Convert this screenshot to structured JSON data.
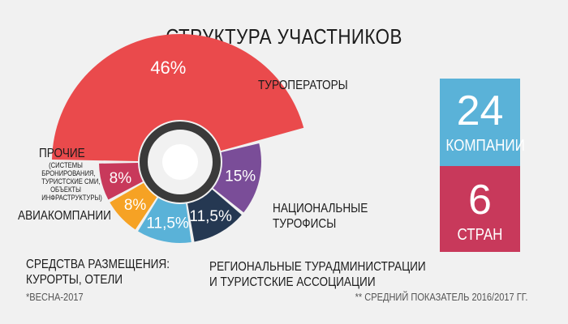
{
  "title": "СТРУКТУРА УЧАСТНИКОВ",
  "chart_data": {
    "type": "pie",
    "style": "exploded-donut",
    "title": "СТРУКТУРА УЧАСТНИКОВ",
    "slices": [
      {
        "label": "ТУРОПЕРАТОРЫ",
        "value_label": "46%",
        "value": 46,
        "color": "#ea4a4c"
      },
      {
        "label": "НАЦИОНАЛЬНЫЕ ТУРОФИСЫ",
        "value_label": "15%",
        "value": 15,
        "color": "#7a4d98"
      },
      {
        "label": "РЕГИОНАЛЬНЫЕ ТУРАДМИНИСТРАЦИИ И ТУРИСТСКИЕ АССОЦИАЦИИ",
        "value_label": "11,5%",
        "value": 11.5,
        "color": "#253852"
      },
      {
        "label": "СРЕДСТВА РАЗМЕЩЕНИЯ: КУРОРТЫ, ОТЕЛИ",
        "value_label": "11,5%",
        "value": 11.5,
        "color": "#5ab2d8"
      },
      {
        "label": "АВИАКОМПАНИИ",
        "value_label": "8%",
        "value": 8,
        "color": "#f6a224"
      },
      {
        "label": "ПРОЧИЕ",
        "value_label": "8%",
        "value": 8,
        "color": "#c8395b"
      }
    ]
  },
  "labels": {
    "tour_operators": "ТУРОПЕРАТОРЫ",
    "national_1": "НАЦИОНАЛЬНЫЕ",
    "national_2": "ТУРОФИСЫ",
    "regional_1": "РЕГИОНАЛЬНЫЕ ТУРАДМИНИСТРАЦИИ",
    "regional_2": "И ТУРИСТСКИЕ АССОЦИАЦИИ",
    "lodging_1": "СРЕДСТВА РАЗМЕЩЕНИЯ:",
    "lodging_2": "КУРОРТЫ, ОТЕЛИ",
    "airlines": "АВИАКОМПАНИИ",
    "other": "ПРОЧИЕ",
    "other_note": [
      "(СИСТЕМЫ",
      "БРОНИРОВАНИЯ,",
      "ТУРИСТСКИЕ СМИ,",
      "ОБЪЕКТЫ",
      "ИНФРАСТРУКТУРЫ)"
    ]
  },
  "stats": {
    "companies_num": "24",
    "companies_word": "КОМПАНИИ",
    "countries_num": "6",
    "countries_word": "СТРАН",
    "color_top": "#5ab2d8",
    "color_bottom": "#c8395b"
  },
  "footnotes": {
    "left": "*ВЕСНА-2017",
    "right": "** СРЕДНИЙ ПОКАЗАТЕЛЬ 2016/2017 ГГ."
  }
}
